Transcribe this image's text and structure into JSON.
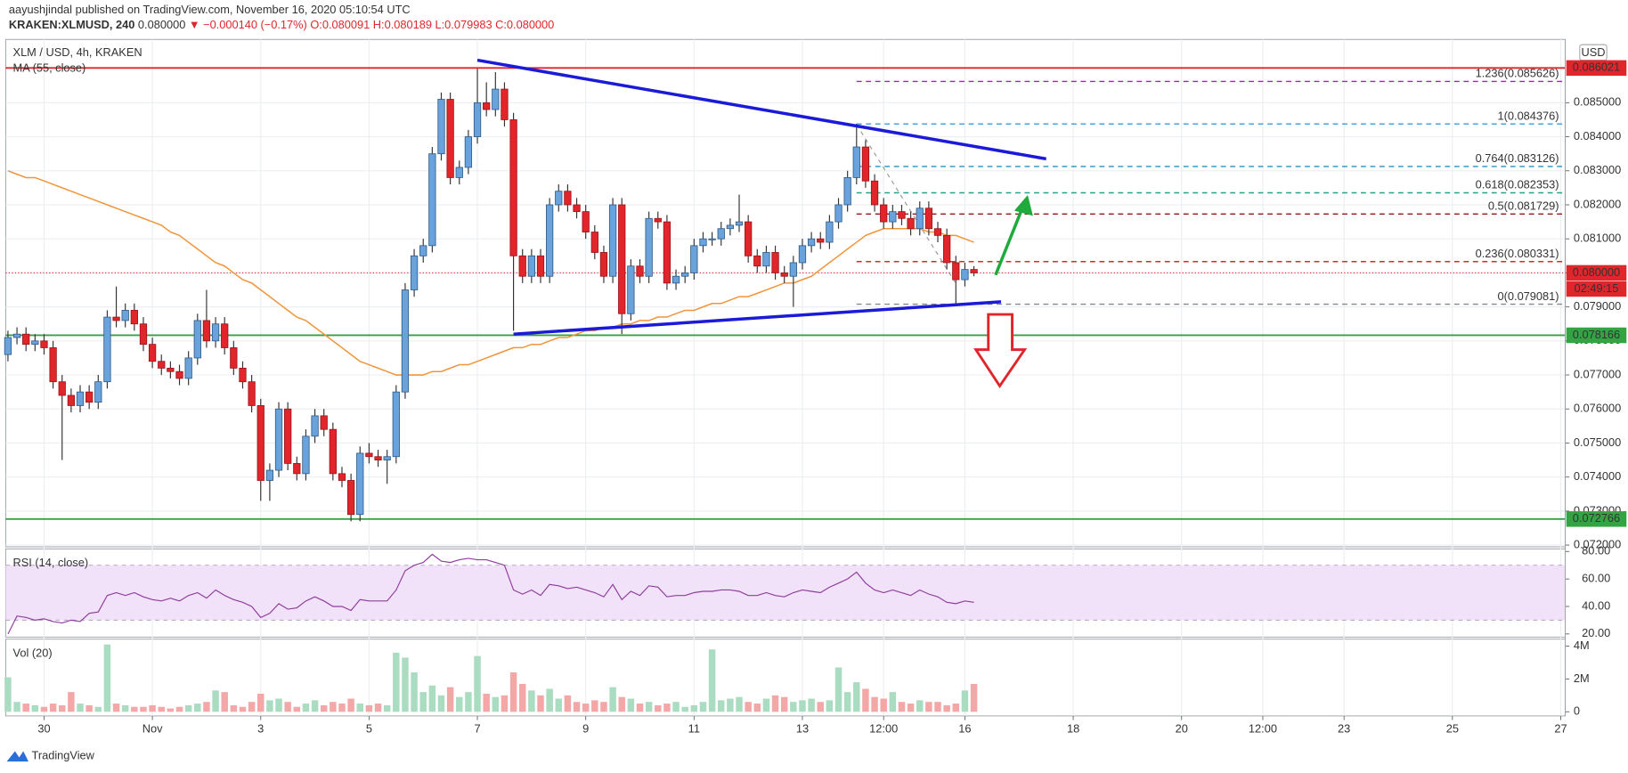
{
  "header": {
    "published": "aayushjindal published on TradingView.com, November 16, 2020 05:10:54 UTC",
    "symbol": "KRAKEN:XLMUSD, 240",
    "last": "0.080000",
    "change": "▼ −0.000140 (−0.17%)",
    "ohlc": "O:0.080091 H:0.080189 L:0.079983 C:0.080000"
  },
  "footer": {
    "brand": "TradingView"
  },
  "chart_data": {
    "type": "candlestick",
    "title": "XLM / USD, 4h, KRAKEN",
    "currency": "USD",
    "up_color": "#6aa3db",
    "down_color": "#e0252b",
    "wick_color": "#333333",
    "grid": true,
    "xlim": [
      -0.25,
      172.5
    ],
    "xticks": [
      {
        "value": 4,
        "label": "30"
      },
      {
        "value": 16,
        "label": "Nov"
      },
      {
        "value": 28,
        "label": "3"
      },
      {
        "value": 40,
        "label": "5"
      },
      {
        "value": 52,
        "label": "7"
      },
      {
        "value": 64,
        "label": "9"
      },
      {
        "value": 76,
        "label": "11"
      },
      {
        "value": 88,
        "label": "13"
      },
      {
        "value": 97,
        "label": "12:00"
      },
      {
        "value": 106,
        "label": "16"
      },
      {
        "value": 118,
        "label": "18"
      },
      {
        "value": 130,
        "label": "20"
      },
      {
        "value": 139,
        "label": "12:00"
      },
      {
        "value": 148,
        "label": "23"
      },
      {
        "value": 160,
        "label": "25"
      },
      {
        "value": 172,
        "label": "27"
      }
    ],
    "ylim": [
      0.07195,
      0.08686
    ],
    "yticks": [
      {
        "value": 0.072,
        "label": "0.072000"
      },
      {
        "value": 0.073,
        "label": "0.073000"
      },
      {
        "value": 0.074,
        "label": "0.074000"
      },
      {
        "value": 0.075,
        "label": "0.075000"
      },
      {
        "value": 0.076,
        "label": "0.076000"
      },
      {
        "value": 0.077,
        "label": "0.077000"
      },
      {
        "value": 0.078,
        "label": "0.078000"
      },
      {
        "value": 0.079,
        "label": "0.079000"
      },
      {
        "value": 0.08,
        "label": "0.080000"
      },
      {
        "value": 0.081,
        "label": "0.081000"
      },
      {
        "value": 0.082,
        "label": "0.082000"
      },
      {
        "value": 0.083,
        "label": "0.083000"
      },
      {
        "value": 0.084,
        "label": "0.084000"
      },
      {
        "value": 0.085,
        "label": "0.085000"
      }
    ],
    "ohlc": {
      "open": [
        0.0776,
        0.0781,
        0.0782,
        0.0779,
        0.078,
        0.0778,
        0.0768,
        0.0764,
        0.0761,
        0.0765,
        0.0762,
        0.0768,
        0.0787,
        0.0786,
        0.0789,
        0.0785,
        0.0779,
        0.0774,
        0.0772,
        0.0771,
        0.0769,
        0.0775,
        0.0786,
        0.078,
        0.0785,
        0.0778,
        0.0772,
        0.0768,
        0.0761,
        0.0739,
        0.0742,
        0.076,
        0.0744,
        0.0741,
        0.0752,
        0.0758,
        0.0754,
        0.0741,
        0.0739,
        0.0729,
        0.0747,
        0.0746,
        0.0745,
        0.0746,
        0.0765,
        0.0795,
        0.0805,
        0.0808,
        0.0835,
        0.0851,
        0.0828,
        0.0831,
        0.084,
        0.085,
        0.0848,
        0.0854,
        0.0845,
        0.0805,
        0.0799,
        0.0805,
        0.0799,
        0.082,
        0.0824,
        0.082,
        0.0818,
        0.0812,
        0.0806,
        0.0799,
        0.082,
        0.0788,
        0.0802,
        0.0799,
        0.0816,
        0.0815,
        0.0797,
        0.0799,
        0.08,
        0.0808,
        0.081,
        0.081,
        0.0813,
        0.0814,
        0.0815,
        0.0805,
        0.0802,
        0.0806,
        0.08,
        0.0799,
        0.0803,
        0.0808,
        0.081,
        0.0809,
        0.0815,
        0.082,
        0.0828,
        0.0837,
        0.0827,
        0.082,
        0.0815,
        0.0818,
        0.0816,
        0.0813,
        0.0819,
        0.0813,
        0.0811,
        0.0803,
        0.0798,
        0.0801
      ],
      "high": [
        0.0783,
        0.0784,
        0.0784,
        0.0782,
        0.0782,
        0.078,
        0.077,
        0.0766,
        0.0767,
        0.0767,
        0.077,
        0.0789,
        0.0796,
        0.0791,
        0.0791,
        0.0787,
        0.0781,
        0.0776,
        0.0774,
        0.0773,
        0.0777,
        0.0788,
        0.0795,
        0.0787,
        0.0787,
        0.078,
        0.0774,
        0.077,
        0.0763,
        0.0744,
        0.0762,
        0.0762,
        0.0746,
        0.0754,
        0.076,
        0.076,
        0.0756,
        0.0743,
        0.0741,
        0.0749,
        0.075,
        0.0748,
        0.0748,
        0.0767,
        0.0797,
        0.0807,
        0.081,
        0.0837,
        0.0853,
        0.0853,
        0.0833,
        0.0842,
        0.086,
        0.0856,
        0.0859,
        0.0856,
        0.0847,
        0.0807,
        0.0807,
        0.0807,
        0.0822,
        0.0826,
        0.0826,
        0.0822,
        0.082,
        0.0814,
        0.0808,
        0.0822,
        0.0822,
        0.0804,
        0.0804,
        0.0818,
        0.0818,
        0.0817,
        0.0801,
        0.0802,
        0.081,
        0.0812,
        0.0812,
        0.0815,
        0.0816,
        0.0823,
        0.0817,
        0.0807,
        0.0808,
        0.0808,
        0.0802,
        0.0805,
        0.081,
        0.0812,
        0.0812,
        0.0817,
        0.0822,
        0.083,
        0.08438,
        0.0839,
        0.0829,
        0.0822,
        0.082,
        0.082,
        0.0818,
        0.0821,
        0.0821,
        0.0815,
        0.0813,
        0.0805,
        0.0803,
        0.0802
      ],
      "low": [
        0.0774,
        0.0779,
        0.0777,
        0.0777,
        0.0776,
        0.0766,
        0.0745,
        0.0759,
        0.0759,
        0.076,
        0.076,
        0.0766,
        0.0784,
        0.0784,
        0.0783,
        0.0777,
        0.0772,
        0.077,
        0.0769,
        0.0767,
        0.0767,
        0.0773,
        0.0778,
        0.0778,
        0.0776,
        0.077,
        0.0766,
        0.0759,
        0.0733,
        0.0733,
        0.074,
        0.0742,
        0.0739,
        0.0739,
        0.075,
        0.0752,
        0.0739,
        0.0737,
        0.0727,
        0.0727,
        0.0744,
        0.0743,
        0.0738,
        0.0744,
        0.0763,
        0.0793,
        0.0803,
        0.0806,
        0.0833,
        0.0826,
        0.0826,
        0.0829,
        0.0838,
        0.0846,
        0.0846,
        0.0843,
        0.0783,
        0.0797,
        0.0797,
        0.0797,
        0.0797,
        0.0818,
        0.0818,
        0.0816,
        0.081,
        0.0804,
        0.0797,
        0.0797,
        0.0782,
        0.0786,
        0.0797,
        0.0797,
        0.0813,
        0.0795,
        0.0795,
        0.0797,
        0.0798,
        0.0806,
        0.0808,
        0.0808,
        0.0811,
        0.0812,
        0.0803,
        0.08,
        0.08,
        0.0798,
        0.0797,
        0.079,
        0.0801,
        0.0806,
        0.0807,
        0.0807,
        0.0813,
        0.0818,
        0.0826,
        0.0825,
        0.0818,
        0.0813,
        0.0813,
        0.0814,
        0.0811,
        0.0811,
        0.0811,
        0.0809,
        0.0801,
        0.07908,
        0.0796,
        0.0799
      ],
      "close": [
        0.0781,
        0.0782,
        0.0779,
        0.078,
        0.0778,
        0.0768,
        0.0764,
        0.0761,
        0.0765,
        0.0762,
        0.0768,
        0.0787,
        0.0786,
        0.0789,
        0.0785,
        0.0779,
        0.0774,
        0.0772,
        0.0771,
        0.0769,
        0.0775,
        0.0786,
        0.078,
        0.0785,
        0.0778,
        0.0772,
        0.0768,
        0.0761,
        0.0739,
        0.0742,
        0.076,
        0.0744,
        0.0741,
        0.0752,
        0.0758,
        0.0754,
        0.0741,
        0.0739,
        0.0729,
        0.0747,
        0.0746,
        0.0745,
        0.0746,
        0.0765,
        0.0795,
        0.0805,
        0.0808,
        0.0835,
        0.0851,
        0.0828,
        0.0831,
        0.084,
        0.085,
        0.0848,
        0.0854,
        0.0845,
        0.0805,
        0.0799,
        0.0805,
        0.0799,
        0.082,
        0.0824,
        0.082,
        0.0818,
        0.0812,
        0.0806,
        0.0799,
        0.082,
        0.0788,
        0.0802,
        0.0799,
        0.0816,
        0.0815,
        0.0797,
        0.0799,
        0.08,
        0.0808,
        0.081,
        0.081,
        0.0813,
        0.0814,
        0.0815,
        0.0805,
        0.0802,
        0.0806,
        0.08,
        0.0799,
        0.0803,
        0.0808,
        0.081,
        0.0809,
        0.0815,
        0.082,
        0.0828,
        0.0837,
        0.0827,
        0.082,
        0.0815,
        0.0818,
        0.0816,
        0.0813,
        0.0819,
        0.0813,
        0.0811,
        0.0803,
        0.0798,
        0.0801,
        0.08
      ]
    },
    "ma": {
      "name": "MA (55, close)",
      "color": "#f0953a",
      "values": [
        0.083,
        0.0829,
        0.0828,
        0.0828,
        0.0827,
        0.0826,
        0.0825,
        0.0824,
        0.0823,
        0.0822,
        0.0821,
        0.082,
        0.0819,
        0.0818,
        0.0817,
        0.0816,
        0.0815,
        0.0814,
        0.0812,
        0.0811,
        0.0809,
        0.0807,
        0.0805,
        0.0803,
        0.0802,
        0.08,
        0.0798,
        0.0797,
        0.0795,
        0.0793,
        0.0791,
        0.0789,
        0.0787,
        0.0786,
        0.0784,
        0.0782,
        0.078,
        0.0778,
        0.0776,
        0.0774,
        0.0773,
        0.0772,
        0.0771,
        0.077,
        0.077,
        0.077,
        0.077,
        0.0771,
        0.0771,
        0.0772,
        0.0773,
        0.0773,
        0.0774,
        0.0775,
        0.0776,
        0.0777,
        0.0778,
        0.0778,
        0.0779,
        0.0779,
        0.078,
        0.0781,
        0.0781,
        0.0782,
        0.0783,
        0.0783,
        0.0784,
        0.0784,
        0.0785,
        0.0785,
        0.0786,
        0.0786,
        0.0787,
        0.0787,
        0.0788,
        0.0789,
        0.0789,
        0.079,
        0.0791,
        0.0791,
        0.0792,
        0.0793,
        0.0793,
        0.0794,
        0.0795,
        0.0796,
        0.0797,
        0.0797,
        0.0798,
        0.0799,
        0.0801,
        0.0803,
        0.0805,
        0.0807,
        0.0809,
        0.0811,
        0.0812,
        0.0813,
        0.0813,
        0.0813,
        0.0813,
        0.0813,
        0.0812,
        0.0812,
        0.0811,
        0.0811,
        0.081,
        0.0809
      ]
    },
    "trendlines": [
      {
        "x": [
          52,
          115
        ],
        "y": [
          0.08625,
          0.08335
        ],
        "color": "#1a1ad8"
      },
      {
        "x": [
          56,
          110
        ],
        "y": [
          0.0782,
          0.07915
        ],
        "color": "#1a1ad8"
      }
    ],
    "hlines": [
      {
        "value": 0.086021,
        "color": "#e0252b"
      },
      {
        "value": 0.078166,
        "color": "#33a343"
      },
      {
        "value": 0.072766,
        "color": "#33a343"
      }
    ],
    "last_price": {
      "value": 0.08,
      "label": "0.080000",
      "color": "#e0252b"
    },
    "countdown": "02:49:15",
    "fib": {
      "start": 94,
      "levels": [
        {
          "value": 0.085626,
          "label": "1.236(0.085626)",
          "color": "#9c27b0"
        },
        {
          "value": 0.084376,
          "label": "1(0.084376)",
          "color": "#3d9ad9"
        },
        {
          "value": 0.083126,
          "label": "0.764(0.083126)",
          "color": "#2a8fbf"
        },
        {
          "value": 0.082353,
          "label": "0.618(0.082353)",
          "color": "#1fa58a"
        },
        {
          "value": 0.081729,
          "label": "0.5(0.081729)",
          "color": "#8e1b1b"
        },
        {
          "value": 0.080331,
          "label": "0.236(0.080331)",
          "color": "#e0252b"
        },
        {
          "value": 0.079081,
          "label": "0(0.079081)",
          "color": "#888888"
        }
      ]
    },
    "rsi": {
      "name": "RSI (14, close)",
      "color": "#8e3d9b",
      "band": [
        30,
        70
      ],
      "band_color": "#f1e2fa",
      "ylim": [
        17.7,
        81.9
      ],
      "yticks": [
        {
          "value": 20,
          "label": "20.00"
        },
        {
          "value": 40,
          "label": "40.00"
        },
        {
          "value": 60,
          "label": "60.00"
        },
        {
          "value": 80,
          "label": "80.00"
        }
      ],
      "values": [
        20,
        33,
        32,
        30,
        31,
        29,
        28,
        30,
        29,
        35,
        36,
        48,
        50,
        48,
        50,
        47,
        45,
        44,
        46,
        44,
        48,
        50,
        46,
        52,
        48,
        45,
        43,
        40,
        32,
        35,
        42,
        38,
        39,
        44,
        47,
        44,
        40,
        40,
        37,
        45,
        44,
        44,
        44,
        52,
        66,
        70,
        72,
        78,
        73,
        72,
        74,
        75,
        74,
        74,
        72,
        70,
        52,
        49,
        52,
        48,
        56,
        55,
        53,
        54,
        52,
        50,
        47,
        56,
        45,
        51,
        48,
        55,
        54,
        47,
        48,
        48,
        50,
        51,
        51,
        52,
        52,
        51,
        48,
        48,
        50,
        48,
        47,
        50,
        52,
        51,
        50,
        54,
        57,
        60,
        65,
        57,
        52,
        50,
        52,
        50,
        48,
        52,
        49,
        47,
        43,
        42,
        44,
        43
      ]
    },
    "volume": {
      "name": "Vol (20)",
      "up_color": "#a9dcc0",
      "down_color": "#f3a7a7",
      "ylim": [
        0,
        4300000
      ],
      "yticks": [
        0,
        {
          "value": 2000000,
          "label": "2M"
        },
        {
          "value": 4000000,
          "label": "4M"
        }
      ],
      "values": [
        2100000,
        600000,
        500000,
        400000,
        300000,
        500000,
        400000,
        1200000,
        500000,
        400000,
        300000,
        4100000,
        500000,
        400000,
        300000,
        300000,
        400000,
        300000,
        200000,
        300000,
        400000,
        500000,
        600000,
        1300000,
        1200000,
        400000,
        300000,
        600000,
        1100000,
        700000,
        800000,
        600000,
        300000,
        500000,
        700000,
        400000,
        600000,
        500000,
        800000,
        500000,
        400000,
        500000,
        400000,
        3600000,
        3300000,
        2400000,
        1200000,
        1600000,
        1000000,
        1500000,
        900000,
        1200000,
        3400000,
        1100000,
        900000,
        1000000,
        2400000,
        1700000,
        1300000,
        1000000,
        1400000,
        800000,
        1000000,
        600000,
        500000,
        700000,
        600000,
        1500000,
        900000,
        800000,
        500000,
        600000,
        400000,
        500000,
        600000,
        300000,
        400000,
        600000,
        3800000,
        700000,
        800000,
        900000,
        600000,
        500000,
        800000,
        1000000,
        900000,
        600000,
        700000,
        800000,
        600000,
        700000,
        2700000,
        1200000,
        1800000,
        1400000,
        900000,
        800000,
        1200000,
        600000,
        500000,
        700000,
        600000,
        600000,
        400000,
        500000,
        1300000,
        1700000
      ]
    }
  }
}
